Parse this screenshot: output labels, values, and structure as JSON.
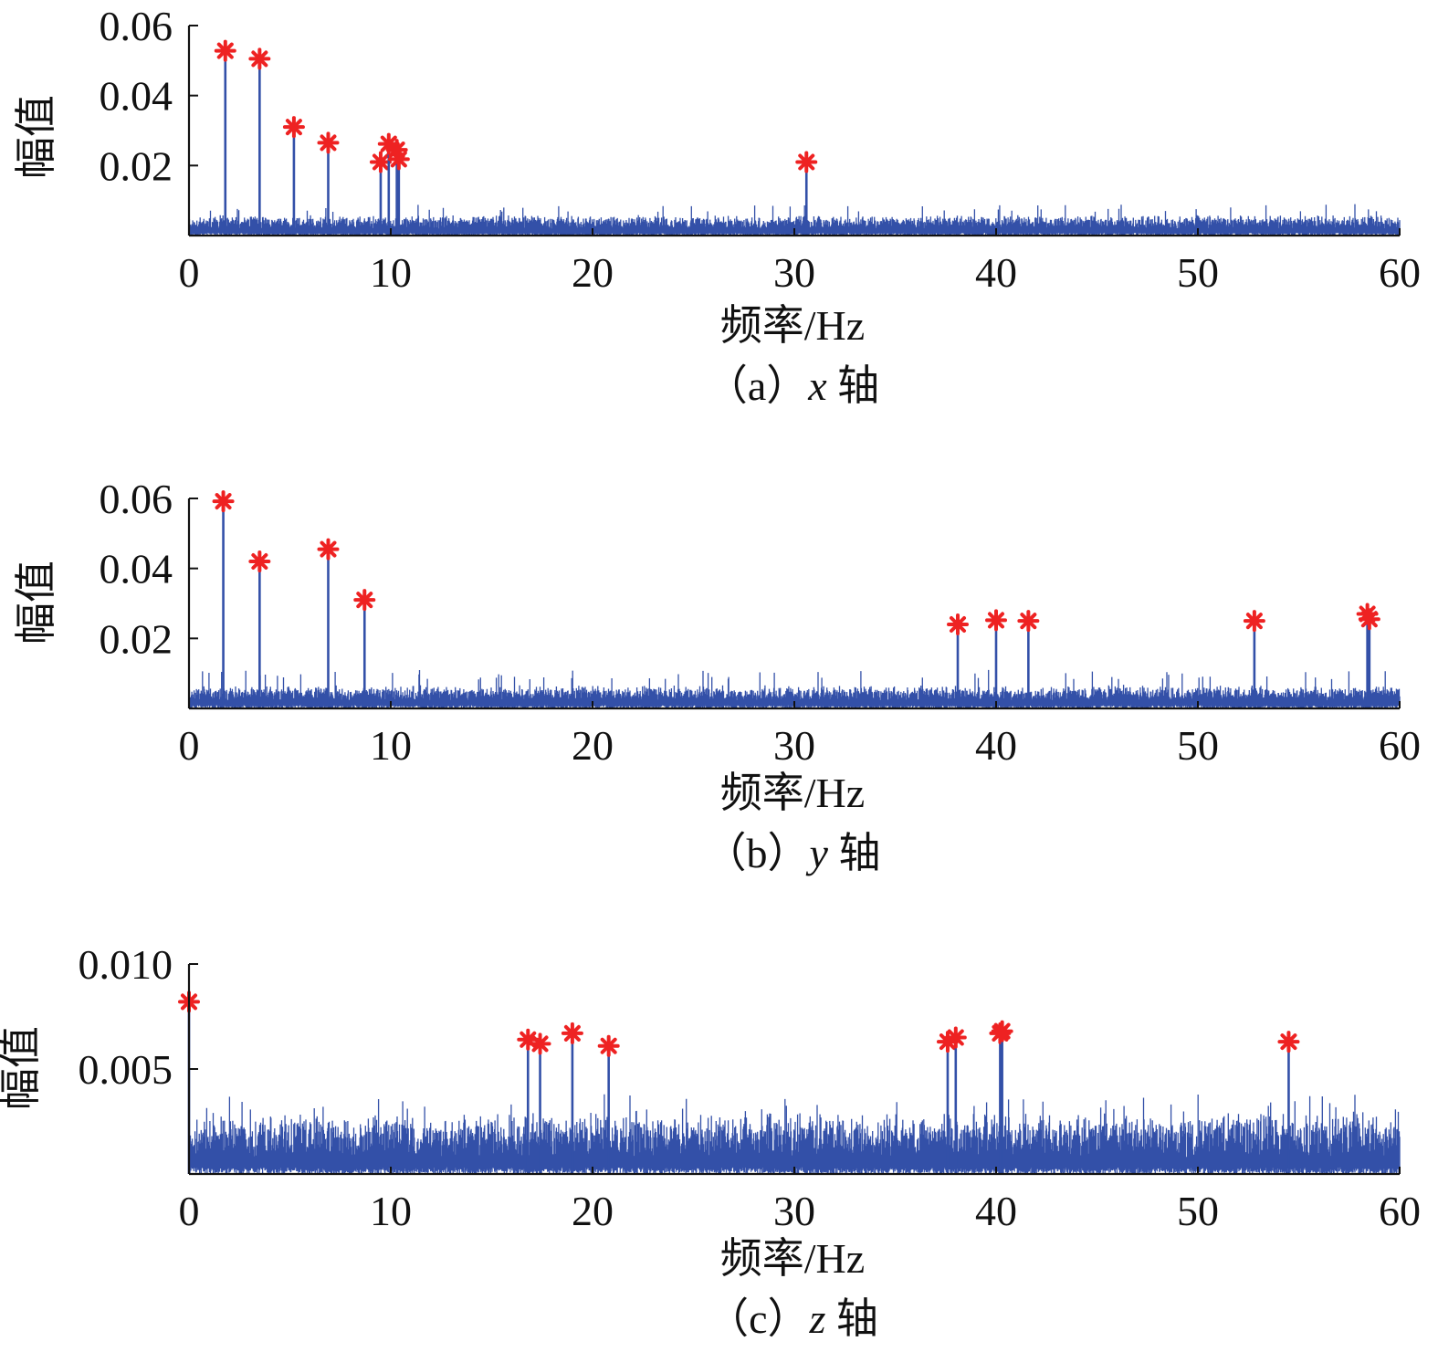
{
  "chart_data": [
    {
      "type": "line",
      "panel": "a",
      "caption_prefix": "（a）",
      "caption_axis": "x",
      "caption_suffix": " 轴",
      "xlabel": "频率/Hz",
      "ylabel": "幅值",
      "xlim": [
        0,
        60
      ],
      "ylim": [
        0,
        0.06
      ],
      "xticks": [
        0,
        10,
        20,
        30,
        40,
        50,
        60
      ],
      "xtick_labels": [
        "0",
        "10",
        "20",
        "30",
        "40",
        "50",
        "60"
      ],
      "yticks": [
        0.02,
        0.04,
        0.06
      ],
      "ytick_labels": [
        "0.02",
        "0.04",
        "0.06"
      ],
      "series_color": "#3350a8",
      "marker_color": "#ee2222",
      "noise": {
        "base": 0.0055,
        "spread": 0.004,
        "spike": 0.009,
        "seed": 11
      },
      "peaks": [
        {
          "x": 1.8,
          "y": 0.0528
        },
        {
          "x": 3.5,
          "y": 0.0505
        },
        {
          "x": 5.2,
          "y": 0.031
        },
        {
          "x": 6.9,
          "y": 0.0265
        },
        {
          "x": 9.5,
          "y": 0.021
        },
        {
          "x": 9.9,
          "y": 0.0262
        },
        {
          "x": 10.3,
          "y": 0.0245
        },
        {
          "x": 10.4,
          "y": 0.0218
        },
        {
          "x": 30.6,
          "y": 0.021
        }
      ]
    },
    {
      "type": "line",
      "panel": "b",
      "caption_prefix": "（b）",
      "caption_axis": "y",
      "caption_suffix": " 轴",
      "xlabel": "频率/Hz",
      "ylabel": "幅值",
      "xlim": [
        0,
        60
      ],
      "ylim": [
        0,
        0.06
      ],
      "xticks": [
        0,
        10,
        20,
        30,
        40,
        50,
        60
      ],
      "xtick_labels": [
        "0",
        "10",
        "20",
        "30",
        "40",
        "50",
        "60"
      ],
      "yticks": [
        0.02,
        0.04,
        0.06
      ],
      "ytick_labels": [
        "0.02",
        "0.04",
        "0.06"
      ],
      "series_color": "#3350a8",
      "marker_color": "#ee2222",
      "noise": {
        "base": 0.0065,
        "spread": 0.0045,
        "spike": 0.011,
        "seed": 23
      },
      "peaks": [
        {
          "x": 1.7,
          "y": 0.0592
        },
        {
          "x": 3.5,
          "y": 0.042
        },
        {
          "x": 6.9,
          "y": 0.0455
        },
        {
          "x": 8.7,
          "y": 0.031
        },
        {
          "x": 38.1,
          "y": 0.024
        },
        {
          "x": 40.0,
          "y": 0.0252
        },
        {
          "x": 41.6,
          "y": 0.025
        },
        {
          "x": 52.8,
          "y": 0.025
        },
        {
          "x": 58.4,
          "y": 0.027
        },
        {
          "x": 58.5,
          "y": 0.0255
        }
      ]
    },
    {
      "type": "line",
      "panel": "c",
      "caption_prefix": "（c）",
      "caption_axis": "z",
      "caption_suffix": " 轴",
      "xlabel": "频率/Hz",
      "ylabel": "幅值",
      "xlim": [
        0,
        60
      ],
      "ylim": [
        0,
        0.01
      ],
      "xticks": [
        0,
        10,
        20,
        30,
        40,
        50,
        60
      ],
      "xtick_labels": [
        "0",
        "10",
        "20",
        "30",
        "40",
        "50",
        "60"
      ],
      "yticks": [
        0.005,
        0.01
      ],
      "ytick_labels": [
        "0.005",
        "0.010"
      ],
      "series_color": "#3350a8",
      "marker_color": "#ee2222",
      "noise": {
        "base": 0.0022,
        "spread": 0.0022,
        "spike": 0.0038,
        "seed": 37
      },
      "peaks": [
        {
          "x": 0.0,
          "y": 0.0082
        },
        {
          "x": 16.8,
          "y": 0.0064
        },
        {
          "x": 17.4,
          "y": 0.0062
        },
        {
          "x": 19.0,
          "y": 0.0067
        },
        {
          "x": 20.8,
          "y": 0.0061
        },
        {
          "x": 37.6,
          "y": 0.0063
        },
        {
          "x": 38.0,
          "y": 0.0065
        },
        {
          "x": 40.2,
          "y": 0.0067
        },
        {
          "x": 40.3,
          "y": 0.0068
        },
        {
          "x": 54.5,
          "y": 0.0063
        }
      ]
    }
  ]
}
